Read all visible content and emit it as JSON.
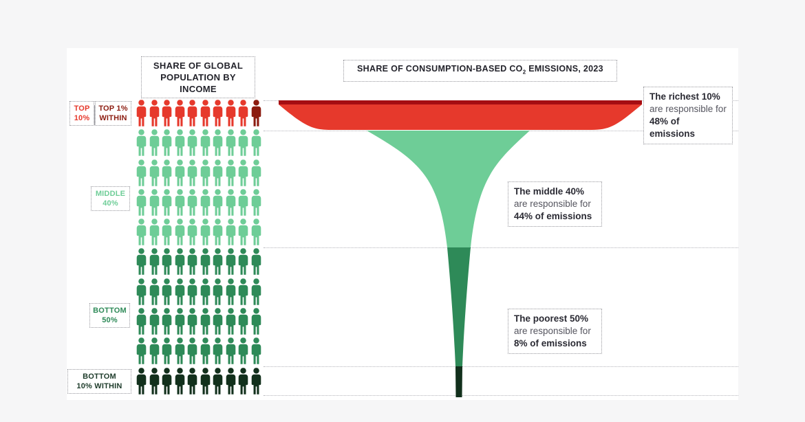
{
  "headers": {
    "population_line1": "SHARE OF GLOBAL",
    "population_line2": "POPULATION BY INCOME",
    "emissions_prefix": "SHARE OF CONSUMPTION-BASED CO",
    "emissions_sub": "2",
    "emissions_suffix": " EMISSIONS, 2023"
  },
  "section_labels": {
    "top10": {
      "line1": "TOP",
      "line2": "10%"
    },
    "top1": {
      "line1": "TOP 1%",
      "line2": "WITHIN"
    },
    "middle40": {
      "line1": "MIDDLE",
      "line2": "40%"
    },
    "bottom50": {
      "line1": "BOTTOM",
      "line2": "50%"
    },
    "bottom10": {
      "line1": "BOTTOM",
      "line2": "10% WITHIN"
    }
  },
  "annotations": {
    "richest": {
      "bold_top": "The richest 10%",
      "middle": "are responsible for",
      "bold_bottom": "48% of emissions"
    },
    "middle": {
      "bold_top": "The middle 40%",
      "middle": "are responsible for",
      "bold_bottom": "44% of emissions"
    },
    "poorest": {
      "bold_top": "The poorest 50%",
      "middle": "are responsible for",
      "bold_bottom": "8% of emissions"
    }
  },
  "colors": {
    "red": "#e6392c",
    "dark_red": "#8c1c10",
    "bar_red": "#a50d12",
    "light_green": "#6ecd97",
    "mid_green": "#2e8a58",
    "dark_green": "#12301c"
  },
  "pictogram": {
    "columns": 10,
    "rows": [
      {
        "name": "top-10pct",
        "color": "#e6392c",
        "last_color": "#8c1c10"
      },
      {
        "name": "middle-40pct-1",
        "color": "#6ecd97"
      },
      {
        "name": "middle-40pct-2",
        "color": "#6ecd97"
      },
      {
        "name": "middle-40pct-3",
        "color": "#6ecd97"
      },
      {
        "name": "middle-40pct-4",
        "color": "#6ecd97"
      },
      {
        "name": "bottom-50pct-1",
        "color": "#2e8a58"
      },
      {
        "name": "bottom-50pct-2",
        "color": "#2e8a58"
      },
      {
        "name": "bottom-50pct-3",
        "color": "#2e8a58"
      },
      {
        "name": "bottom-50pct-4",
        "color": "#2e8a58"
      },
      {
        "name": "bottom-10pct-within",
        "color": "#12301c"
      }
    ]
  },
  "chart_data": {
    "type": "pictogram-funnel",
    "title": "SHARE OF CONSUMPTION-BASED CO2 EMISSIONS, 2023",
    "left_axis_title": "SHARE OF GLOBAL POPULATION BY INCOME",
    "categories": [
      "Top 10%",
      "Middle 40%",
      "Bottom 50%"
    ],
    "series": [
      {
        "name": "Share of global population (%)",
        "values": [
          10,
          40,
          50
        ]
      },
      {
        "name": "Share of consumption-based CO2 emissions 2023 (%)",
        "values": [
          48,
          44,
          8
        ]
      }
    ],
    "sub_highlights": [
      {
        "category": "Top 10%",
        "label": "Top 1% within"
      },
      {
        "category": "Bottom 50%",
        "label": "Bottom 10% within"
      }
    ],
    "pictogram_total_icons": 100,
    "pictogram_unit_pct": 1,
    "legend_position": "none",
    "grid": "dotted section separators"
  }
}
